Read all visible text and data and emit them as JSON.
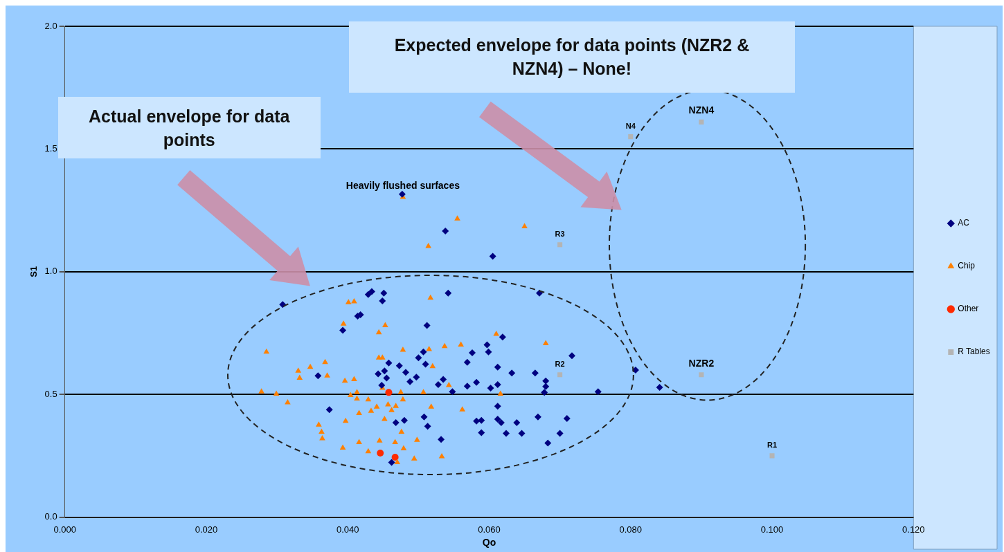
{
  "chart_data": {
    "type": "scatter",
    "xlabel": "Qo",
    "ylabel": "S1",
    "xlim": [
      0,
      0.12
    ],
    "xticks": [
      {
        "value": 0,
        "label": "0.000"
      },
      {
        "value": 0.02,
        "label": "0.020"
      },
      {
        "value": 0.04,
        "label": "0.040"
      },
      {
        "value": 0.06,
        "label": "0.060"
      },
      {
        "value": 0.08,
        "label": "0.080"
      },
      {
        "value": 0.1,
        "label": "0.100"
      },
      {
        "value": 0.12,
        "label": "0.120"
      }
    ],
    "ylim": [
      0,
      2
    ],
    "yticks": [
      {
        "value": 0,
        "label": "0.0"
      },
      {
        "value": 0.5,
        "label": "0.5"
      },
      {
        "value": 1,
        "label": "1.0"
      },
      {
        "value": 1.5,
        "label": "1.5"
      },
      {
        "value": 2,
        "label": "2.0"
      }
    ],
    "grid": "y",
    "legend": "right",
    "series": [
      {
        "name": "AC",
        "color": "#000080",
        "marker": "diamond",
        "x": [
          0.0308,
          0.0429,
          0.0434,
          0.0451,
          0.0449,
          0.0414,
          0.0418,
          0.0393,
          0.0512,
          0.0358,
          0.0374,
          0.0458,
          0.0473,
          0.0482,
          0.05,
          0.0507,
          0.051,
          0.0443,
          0.0452,
          0.0455,
          0.0488,
          0.0497,
          0.0448,
          0.0508,
          0.0513,
          0.0468,
          0.048,
          0.0462,
          0.0542,
          0.0671,
          0.0619,
          0.0597,
          0.0599,
          0.0576,
          0.0569,
          0.0717,
          0.0612,
          0.0632,
          0.0665,
          0.068,
          0.068,
          0.0678,
          0.0528,
          0.0535,
          0.0548,
          0.0569,
          0.0582,
          0.0602,
          0.0612,
          0.0754,
          0.0612,
          0.0532,
          0.0582,
          0.0589,
          0.0612,
          0.0617,
          0.0639,
          0.0589,
          0.0624,
          0.0646,
          0.0669,
          0.071,
          0.07,
          0.0683,
          0.0538,
          0.0605,
          0.0477,
          0.0807,
          0.0841
        ],
        "values": [
          0.866,
          0.907,
          0.919,
          0.913,
          0.881,
          0.819,
          0.825,
          0.761,
          0.781,
          0.576,
          0.438,
          0.628,
          0.617,
          0.59,
          0.649,
          0.673,
          0.623,
          0.584,
          0.596,
          0.567,
          0.552,
          0.57,
          0.537,
          0.408,
          0.37,
          0.385,
          0.394,
          0.223,
          0.913,
          0.913,
          0.734,
          0.702,
          0.673,
          0.67,
          0.631,
          0.658,
          0.611,
          0.587,
          0.587,
          0.555,
          0.532,
          0.508,
          0.54,
          0.561,
          0.511,
          0.534,
          0.549,
          0.526,
          0.54,
          0.511,
          0.452,
          0.317,
          0.391,
          0.394,
          0.399,
          0.385,
          0.385,
          0.344,
          0.341,
          0.341,
          0.408,
          0.402,
          0.341,
          0.302,
          1.166,
          1.063,
          1.316,
          0.599,
          0.529
        ]
      },
      {
        "name": "Chip",
        "color": "#ff8000",
        "marker": "triangle",
        "x": [
          0.0478,
          0.0555,
          0.0514,
          0.065,
          0.0517,
          0.0401,
          0.0409,
          0.0394,
          0.0453,
          0.0444,
          0.0285,
          0.033,
          0.0332,
          0.0347,
          0.0368,
          0.0371,
          0.0278,
          0.0299,
          0.0315,
          0.0396,
          0.0409,
          0.0444,
          0.0449,
          0.0478,
          0.0404,
          0.0413,
          0.0413,
          0.0429,
          0.0441,
          0.0433,
          0.0416,
          0.0449,
          0.0457,
          0.0468,
          0.0462,
          0.0475,
          0.0478,
          0.0507,
          0.0452,
          0.0397,
          0.0359,
          0.0363,
          0.0364,
          0.0393,
          0.0416,
          0.0429,
          0.0445,
          0.0467,
          0.0476,
          0.0479,
          0.0498,
          0.0494,
          0.047,
          0.061,
          0.0515,
          0.0537,
          0.056,
          0.068,
          0.052,
          0.0543,
          0.0616,
          0.0518,
          0.0562,
          0.0533
        ],
        "values": [
          1.304,
          1.216,
          1.104,
          1.184,
          0.893,
          0.875,
          0.878,
          0.787,
          0.781,
          0.752,
          0.673,
          0.596,
          0.567,
          0.611,
          0.631,
          0.576,
          0.511,
          0.502,
          0.467,
          0.555,
          0.561,
          0.649,
          0.649,
          0.681,
          0.496,
          0.508,
          0.482,
          0.479,
          0.449,
          0.432,
          0.423,
          0.526,
          0.458,
          0.452,
          0.435,
          0.508,
          0.479,
          0.508,
          0.399,
          0.391,
          0.376,
          0.347,
          0.32,
          0.282,
          0.305,
          0.267,
          0.311,
          0.305,
          0.347,
          0.279,
          0.314,
          0.238,
          0.223,
          0.746,
          0.684,
          0.696,
          0.702,
          0.708,
          0.614,
          0.537,
          0.502,
          0.449,
          0.438,
          0.247
        ]
      },
      {
        "name": "Other",
        "color": "#ff2a00",
        "marker": "circle",
        "x": [
          0.0458,
          0.0446,
          0.0467
        ],
        "values": [
          0.508,
          0.261,
          0.244
        ]
      },
      {
        "name": "R Tables",
        "color": "#b4b4b4",
        "marker": "square",
        "x": [
          0.07,
          0.07,
          0.09,
          0.08,
          0.09,
          0.1
        ],
        "values": [
          1.11,
          0.58,
          1.61,
          1.55,
          0.58,
          0.25
        ]
      }
    ],
    "annotations": [
      "Actual envelope for data points",
      "Expected envelope for data points (NZR2 & NZN4) – None!",
      {
        "text": "Heavily flushed surfaces",
        "x": 0.0478,
        "y": 1.304
      },
      {
        "text": "R3",
        "x": 0.07,
        "y": 1.11
      },
      {
        "text": "R2",
        "x": 0.07,
        "y": 0.58
      },
      {
        "text": "NZN4",
        "x": 0.09,
        "y": 1.61
      },
      {
        "text": "N4",
        "x": 0.08,
        "y": 1.55
      },
      {
        "text": "NZR2",
        "x": 0.09,
        "y": 0.58
      },
      {
        "text": "R1",
        "x": 0.1,
        "y": 0.25
      }
    ]
  }
}
